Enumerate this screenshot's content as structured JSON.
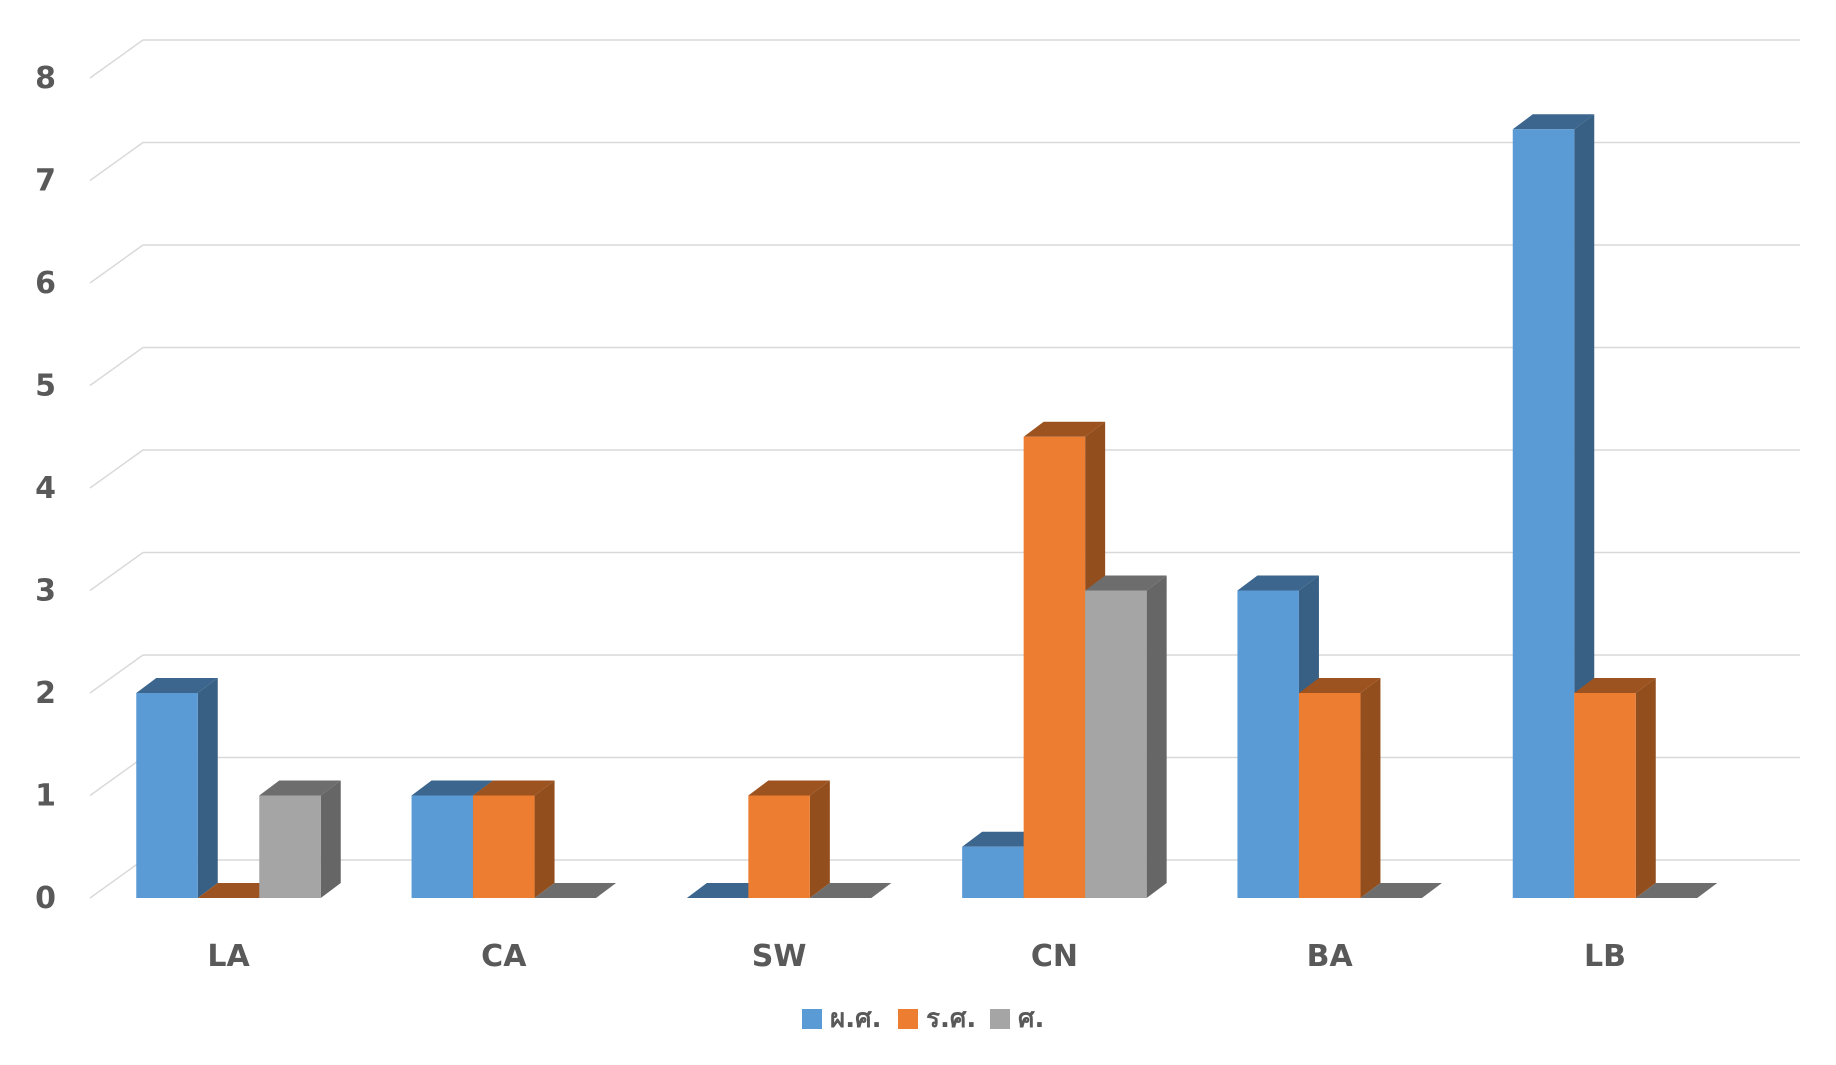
{
  "chart_data": {
    "type": "bar",
    "variant": "3d-clustered-column",
    "title": "",
    "xlabel": "",
    "ylabel": "",
    "categories": [
      "LA",
      "CA",
      "SW",
      "CN",
      "BA",
      "LB"
    ],
    "yticks": [
      "0",
      "1",
      "2",
      "3",
      "4",
      "5",
      "6",
      "7",
      "8"
    ],
    "ylim": [
      0,
      8
    ],
    "grid": true,
    "legend_position": "bottom",
    "series": [
      {
        "name": "ผ.ศ.",
        "values": [
          2,
          1,
          0,
          0.5,
          3,
          7.5
        ],
        "color": "#5B9BD5"
      },
      {
        "name": "ร.ศ.",
        "values": [
          0,
          1,
          1,
          4.5,
          2,
          2
        ],
        "color": "#ED7D31"
      },
      {
        "name": "ศ.",
        "values": [
          1,
          0,
          0,
          3,
          0,
          0
        ],
        "color": "#A5A5A5"
      }
    ]
  }
}
